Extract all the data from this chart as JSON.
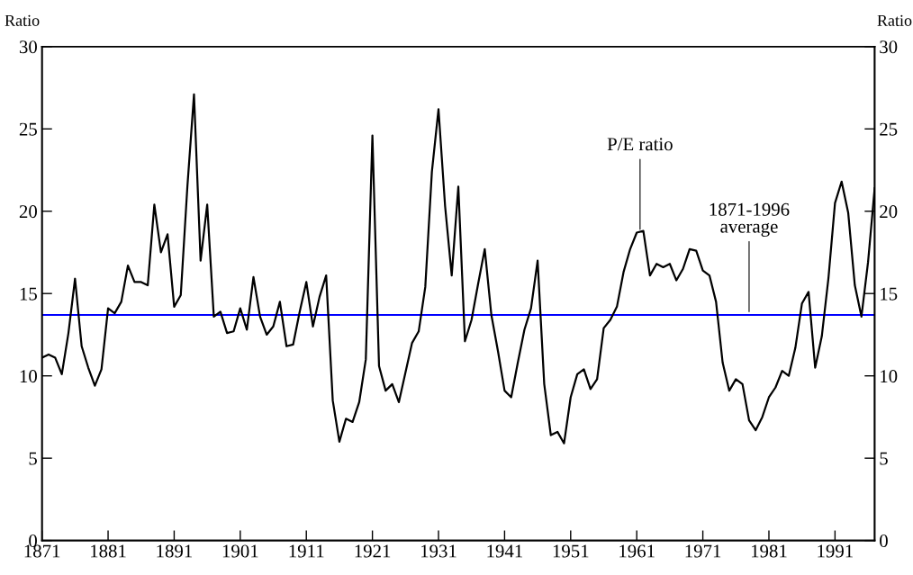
{
  "chart_data": {
    "type": "line",
    "ylabel": "Ratio",
    "y2label": "Ratio",
    "x": [
      1871,
      1872,
      1873,
      1874,
      1875,
      1876,
      1877,
      1878,
      1879,
      1880,
      1881,
      1882,
      1883,
      1884,
      1885,
      1886,
      1887,
      1888,
      1889,
      1890,
      1891,
      1892,
      1893,
      1894,
      1895,
      1896,
      1897,
      1898,
      1899,
      1900,
      1901,
      1902,
      1903,
      1904,
      1905,
      1906,
      1907,
      1908,
      1909,
      1910,
      1911,
      1912,
      1913,
      1914,
      1915,
      1916,
      1917,
      1918,
      1919,
      1920,
      1921,
      1922,
      1923,
      1924,
      1925,
      1926,
      1927,
      1928,
      1929,
      1930,
      1931,
      1932,
      1933,
      1934,
      1935,
      1936,
      1937,
      1938,
      1939,
      1940,
      1941,
      1942,
      1943,
      1944,
      1945,
      1946,
      1947,
      1948,
      1949,
      1950,
      1951,
      1952,
      1953,
      1954,
      1955,
      1956,
      1957,
      1958,
      1959,
      1960,
      1961,
      1962,
      1963,
      1964,
      1965,
      1966,
      1967,
      1968,
      1969,
      1970,
      1971,
      1972,
      1973,
      1974,
      1975,
      1976,
      1977,
      1978,
      1979,
      1980,
      1981,
      1982,
      1983,
      1984,
      1985,
      1986,
      1987,
      1988,
      1989,
      1990,
      1991,
      1992,
      1993,
      1994,
      1995,
      1996,
      1997
    ],
    "series": [
      {
        "color": "#000000",
        "values": [
          11.1,
          11.3,
          11.1,
          10.1,
          12.6,
          15.9,
          11.8,
          10.5,
          9.4,
          10.4,
          14.1,
          13.8,
          14.5,
          16.7,
          15.7,
          15.7,
          15.5,
          20.4,
          17.5,
          18.6,
          14.2,
          14.9,
          21.5,
          27.1,
          17.0,
          20.4,
          13.6,
          13.9,
          12.6,
          12.7,
          14.1,
          12.8,
          16.0,
          13.6,
          12.5,
          13.0,
          14.5,
          11.8,
          11.9,
          13.9,
          15.7,
          13.0,
          14.8,
          16.1,
          8.5,
          6.0,
          7.4,
          7.2,
          8.4,
          11.0,
          24.6,
          10.6,
          9.1,
          9.5,
          8.4,
          10.2,
          12.0,
          12.7,
          15.4,
          22.4,
          26.2,
          20.3,
          16.1,
          21.5,
          12.1,
          13.4,
          15.6,
          17.7,
          13.7,
          11.5,
          9.1,
          8.7,
          10.8,
          12.8,
          14.1,
          17.0,
          9.5,
          6.4,
          6.6,
          5.9,
          8.7,
          10.1,
          10.4,
          9.2,
          9.8,
          12.9,
          13.4,
          14.2,
          16.3,
          17.7,
          18.7,
          18.8,
          16.1,
          16.8,
          16.6,
          16.8,
          15.8,
          16.5,
          17.7,
          17.6,
          16.4,
          16.1,
          14.5,
          10.8,
          9.1,
          9.8,
          9.5,
          7.3,
          6.7,
          7.5,
          8.7,
          9.3,
          10.3,
          10.0,
          11.7,
          14.4,
          15.1,
          10.5,
          12.4,
          15.9,
          20.5,
          21.8,
          19.9,
          15.5,
          13.6,
          16.9,
          21.4
        ]
      }
    ],
    "xlim": [
      1871,
      1997
    ],
    "xticks": [
      1871,
      1881,
      1891,
      1901,
      1911,
      1921,
      1931,
      1941,
      1951,
      1961,
      1971,
      1981,
      1991
    ],
    "ylim": [
      0,
      30
    ],
    "yticks": [
      0,
      5,
      10,
      15,
      20,
      25,
      30
    ],
    "y2lim": [
      0,
      30
    ],
    "y2ticks": [
      0,
      5,
      10,
      15,
      20,
      25,
      30
    ],
    "ref_lines": [
      {
        "axis": "y",
        "value": 13.7,
        "color": "#0000ff"
      }
    ],
    "annotations": [
      {
        "text": "P/E ratio",
        "x": 1961.5,
        "y": 18.9
      },
      {
        "text": "1871-1996\naverage",
        "x": 1978,
        "y": 13.9
      }
    ],
    "grid": false,
    "marker": "none",
    "line_style": "solid"
  }
}
